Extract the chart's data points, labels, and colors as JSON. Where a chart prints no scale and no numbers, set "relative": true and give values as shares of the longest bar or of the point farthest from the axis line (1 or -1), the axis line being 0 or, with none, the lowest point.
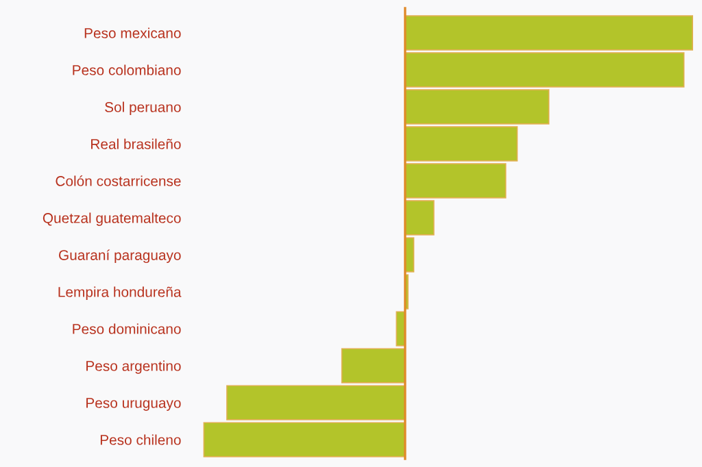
{
  "chart_data": {
    "type": "bar",
    "orientation": "horizontal",
    "relative": true,
    "categories": [
      "Peso mexicano",
      "Peso colombiano",
      "Sol peruano",
      "Real brasileño",
      "Colón costarricense",
      "Quetzal guatemalteco",
      "Guaraní paraguayo",
      "Lempira hondureña",
      "Peso dominicano",
      "Peso argentino",
      "Peso uruguayo",
      "Peso chileno"
    ],
    "values": [
      1,
      0.97,
      0.5,
      0.39,
      0.35,
      0.1,
      0.03,
      0.01,
      -0.03,
      -0.22,
      -0.62,
      -0.7
    ],
    "color": "#b3c42a",
    "grid": false,
    "legend": false,
    "ref_lines": [
      {
        "axis": "x",
        "value": 0,
        "color": "#e08a2a"
      }
    ]
  }
}
